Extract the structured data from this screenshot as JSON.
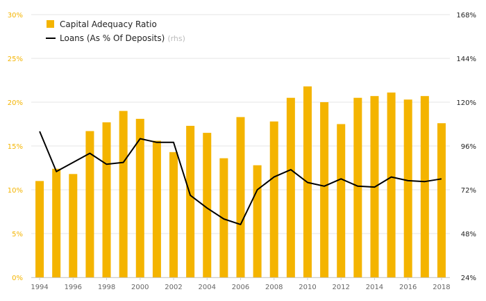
{
  "chart_data": {
    "type": "bar",
    "categories": [
      "1994",
      "1995",
      "1996",
      "1997",
      "1998",
      "1999",
      "2000",
      "2001",
      "2002",
      "2003",
      "2004",
      "2005",
      "2006",
      "2007",
      "2008",
      "2009",
      "2010",
      "2011",
      "2012",
      "2013",
      "2014",
      "2015",
      "2016",
      "2017",
      "2018"
    ],
    "x_tick_labels": [
      "1994",
      "1996",
      "1998",
      "2000",
      "2002",
      "2004",
      "2006",
      "2008",
      "2010",
      "2012",
      "2014",
      "2016",
      "2018"
    ],
    "series": [
      {
        "name": "Capital Adequacy Ratio",
        "type": "bar",
        "axis": "left",
        "color": "#f4b400",
        "values": [
          11.0,
          12.4,
          11.8,
          16.7,
          17.7,
          19.0,
          18.1,
          15.6,
          14.3,
          17.3,
          16.5,
          13.6,
          18.3,
          12.8,
          17.8,
          20.5,
          21.8,
          20.0,
          17.5,
          20.5,
          20.7,
          21.1,
          20.3,
          20.7,
          17.6
        ]
      },
      {
        "name": "Loans (As % Of Deposits)",
        "type": "line",
        "axis": "right",
        "color": "#000000",
        "values": [
          104,
          82,
          87,
          92,
          86,
          87,
          100,
          98,
          98,
          69,
          62,
          56,
          53,
          72,
          79,
          83,
          76,
          74,
          78,
          74,
          73.5,
          79,
          77,
          76.5,
          78
        ]
      }
    ],
    "legend_rhs_suffix": "(rhs)",
    "y_left": {
      "min": 0,
      "max": 30,
      "ticks": [
        "0%",
        "5%",
        "10%",
        "15%",
        "20%",
        "25%",
        "30%"
      ]
    },
    "y_right": {
      "min": 24,
      "max": 168,
      "ticks": [
        "24%",
        "48%",
        "72%",
        "96%",
        "120%",
        "144%",
        "168%"
      ]
    },
    "grid": true,
    "legend_position": "top-left"
  }
}
